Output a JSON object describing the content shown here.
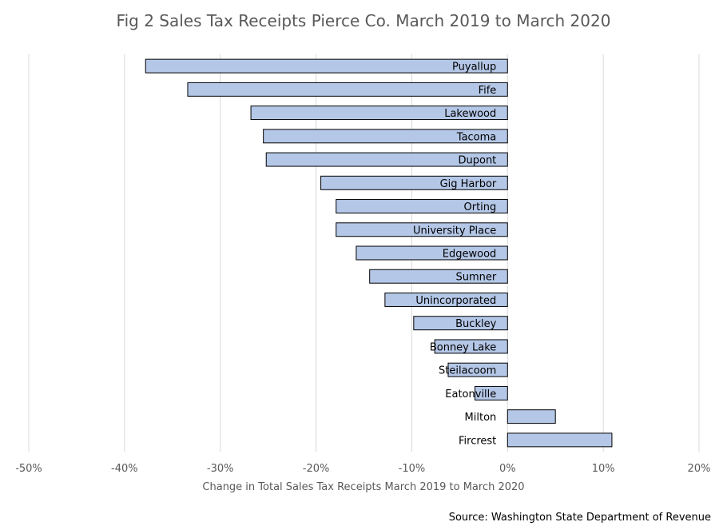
{
  "chart_data": {
    "type": "bar",
    "orientation": "horizontal",
    "title": "Fig 2 Sales Tax Receipts Pierce Co. March 2019 to March 2020",
    "xlabel": "Change in Total Sales Tax Receipts March 2019 to March 2020",
    "ylabel": "",
    "source": "Source: Washington State Department of Revenue",
    "xlim": [
      -50,
      20
    ],
    "xticks": [
      -50,
      -40,
      -30,
      -20,
      -10,
      0,
      10,
      20
    ],
    "tick_suffix": "%",
    "grid": true,
    "legend": "none",
    "bar_color": "#b4c7e7",
    "categories": [
      "Puyallup",
      "Fife",
      "Lakewood",
      "Tacoma",
      "Dupont",
      "Gig Harbor",
      "Orting",
      "University Place",
      "Edgewood",
      "Sumner",
      "Unincorporated",
      "Buckley",
      "Bonney Lake",
      "Steilacoom",
      "Eatonville",
      "Milton",
      "Fircrest"
    ],
    "values": [
      -37.8,
      -33.4,
      -26.8,
      -25.5,
      -25.2,
      -19.5,
      -17.9,
      -17.9,
      -15.8,
      -14.4,
      -12.8,
      -9.8,
      -7.6,
      -6.2,
      -3.4,
      5.0,
      10.9
    ]
  }
}
